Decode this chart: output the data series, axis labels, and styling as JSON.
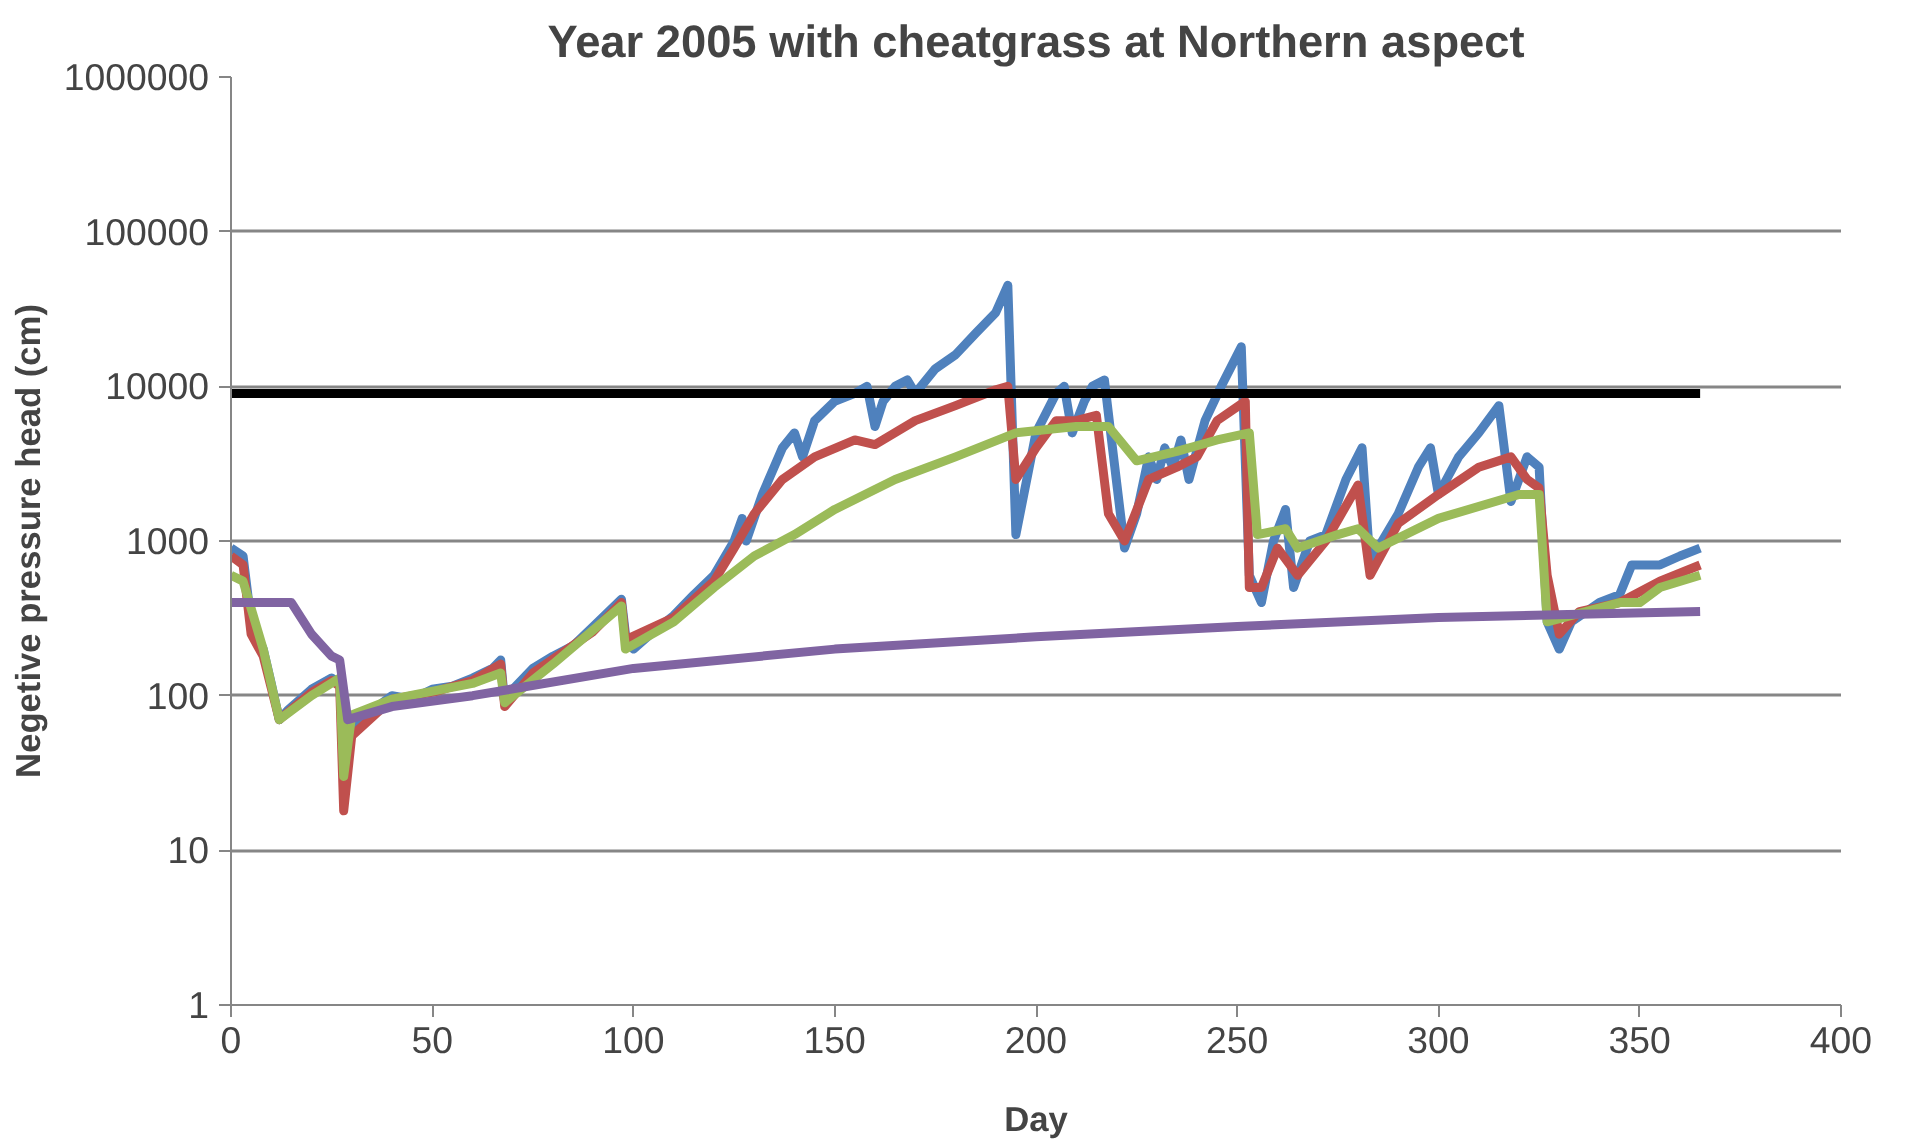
{
  "chart_data": {
    "type": "line",
    "title": "Year 2005 with cheatgrass at Northern aspect",
    "xlabel": "Day",
    "ylabel": "Negetive pressure head (cm)",
    "log": "y",
    "grid": "y",
    "marker": "none",
    "line_style": "solid",
    "xlim": [
      0,
      400
    ],
    "xticks": [
      0,
      50,
      100,
      150,
      200,
      250,
      300,
      350,
      400
    ],
    "ylim": [
      1,
      1000000
    ],
    "yticks": [
      1,
      10,
      100,
      1000,
      10000,
      100000,
      1000000
    ],
    "series": [
      {
        "color": "#4f81bd",
        "x": [
          0,
          3,
          5,
          8,
          10,
          12,
          14,
          20,
          25,
          27,
          28,
          30,
          35,
          40,
          45,
          50,
          55,
          60,
          65,
          67,
          68,
          70,
          75,
          80,
          85,
          90,
          97,
          98,
          100,
          105,
          110,
          115,
          120,
          125,
          127,
          128,
          132,
          137,
          140,
          142,
          145,
          150,
          155,
          158,
          160,
          162,
          165,
          168,
          170,
          175,
          180,
          185,
          190,
          193,
          195,
          200,
          205,
          207,
          209,
          212,
          214,
          217,
          219,
          222,
          225,
          228,
          230,
          232,
          234,
          236,
          238,
          242,
          246,
          251,
          253,
          256,
          259,
          262,
          264,
          268,
          272,
          277,
          281,
          283,
          286,
          290,
          295,
          298,
          300,
          305,
          310,
          315,
          318,
          322,
          325,
          327,
          330,
          333,
          340,
          345,
          348,
          355,
          360,
          365
        ],
        "values": [
          900,
          800,
          300,
          200,
          120,
          70,
          80,
          110,
          130,
          120,
          null,
          60,
          80,
          100,
          95,
          110,
          115,
          130,
          150,
          170,
          90,
          110,
          150,
          180,
          210,
          280,
          420,
          250,
          200,
          260,
          330,
          450,
          600,
          1000,
          1400,
          1000,
          2000,
          4000,
          5000,
          3500,
          6000,
          8000,
          9000,
          10000,
          5500,
          8000,
          10000,
          11000,
          9000,
          13000,
          16000,
          22000,
          30000,
          45000,
          1100,
          5000,
          9000,
          10000,
          5000,
          8000,
          10000,
          11000,
          4000,
          900,
          1500,
          3500,
          2500,
          4000,
          3000,
          4500,
          2500,
          6000,
          10000,
          18000,
          600,
          400,
          1000,
          1600,
          500,
          1000,
          1100,
          2500,
          4000,
          700,
          1000,
          1500,
          3000,
          4000,
          2000,
          3500,
          5000,
          7500,
          1800,
          3500,
          3000,
          300,
          200,
          300,
          400,
          450,
          700,
          700,
          800,
          900
        ]
      },
      {
        "color": "#c0504d",
        "x": [
          0,
          3,
          5,
          8,
          12,
          20,
          25,
          27,
          28,
          30,
          40,
          50,
          60,
          67,
          68,
          75,
          90,
          97,
          98,
          110,
          120,
          125,
          130,
          137,
          145,
          155,
          160,
          170,
          180,
          190,
          193,
          195,
          200,
          205,
          210,
          215,
          218,
          222,
          228,
          235,
          240,
          245,
          252,
          253,
          256,
          260,
          265,
          272,
          280,
          283,
          290,
          300,
          310,
          318,
          322,
          325,
          327,
          330,
          335,
          345,
          355,
          365
        ],
        "values": [
          800,
          700,
          250,
          180,
          70,
          105,
          125,
          115,
          18,
          55,
          95,
          105,
          125,
          160,
          85,
          140,
          260,
          400,
          230,
          320,
          550,
          900,
          1500,
          2500,
          3500,
          4500,
          4200,
          6000,
          7500,
          9500,
          10000,
          2500,
          4000,
          6000,
          6000,
          6500,
          1500,
          1000,
          2500,
          3000,
          3500,
          6000,
          8000,
          500,
          500,
          900,
          600,
          1000,
          2300,
          600,
          1300,
          2000,
          3000,
          3500,
          2500,
          2200,
          600,
          250,
          350,
          400,
          550,
          700
        ]
      },
      {
        "color": "#9bbb59",
        "x": [
          0,
          3,
          8,
          12,
          20,
          27,
          28,
          30,
          40,
          60,
          67,
          68,
          80,
          97,
          98,
          110,
          120,
          130,
          140,
          150,
          165,
          180,
          195,
          210,
          218,
          225,
          235,
          245,
          253,
          255,
          262,
          265,
          275,
          280,
          285,
          300,
          320,
          325,
          327,
          345,
          350,
          355,
          365
        ],
        "values": [
          600,
          550,
          200,
          70,
          100,
          130,
          30,
          75,
          95,
          120,
          140,
          90,
          160,
          380,
          200,
          300,
          500,
          800,
          1100,
          1600,
          2500,
          3500,
          5000,
          5500,
          5500,
          3300,
          3800,
          4500,
          5000,
          1100,
          1200,
          900,
          1100,
          1200,
          900,
          1400,
          2000,
          2000,
          300,
          400,
          400,
          500,
          600
        ]
      },
      {
        "color": "#8064a2",
        "x": [
          0,
          15,
          20,
          25,
          27,
          29,
          40,
          60,
          100,
          150,
          200,
          250,
          300,
          365
        ],
        "values": [
          400,
          400,
          250,
          180,
          170,
          70,
          85,
          100,
          150,
          200,
          240,
          280,
          320,
          350
        ]
      },
      {
        "color": "#000000",
        "x": [
          0,
          365
        ],
        "values": [
          9000,
          9000
        ]
      }
    ]
  }
}
